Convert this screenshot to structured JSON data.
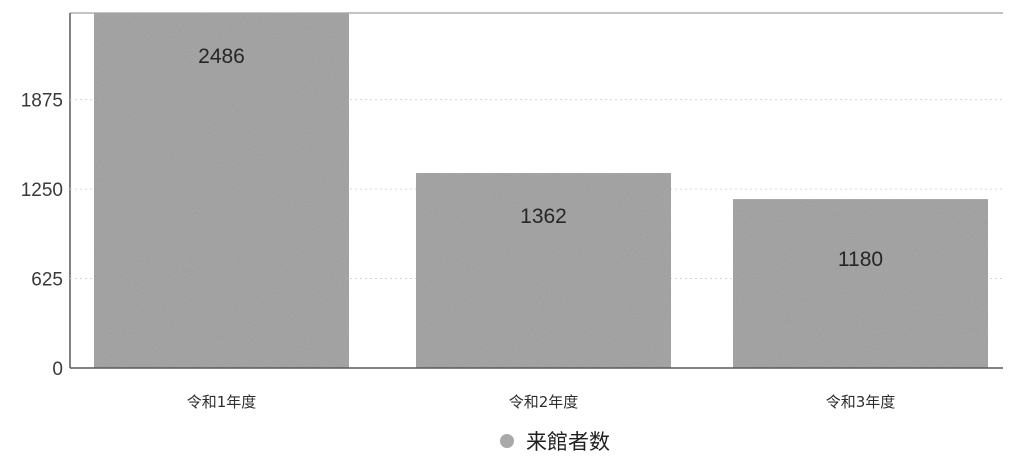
{
  "chart_data": {
    "type": "bar",
    "categories": [
      "令和1年度",
      "令和2年度",
      "令和3年度"
    ],
    "series": [
      {
        "name": "来館者数",
        "values": [
          2486,
          1362,
          1180
        ],
        "color": "#a9a9a9"
      }
    ],
    "yticks": [
      0,
      625,
      1250,
      1875
    ],
    "ylim": [
      0,
      2480
    ],
    "data_labels": [
      "2486",
      "1362",
      "1180"
    ],
    "legend_position": "bottom-center",
    "grid": true,
    "title": "",
    "xlabel": "",
    "ylabel": ""
  }
}
